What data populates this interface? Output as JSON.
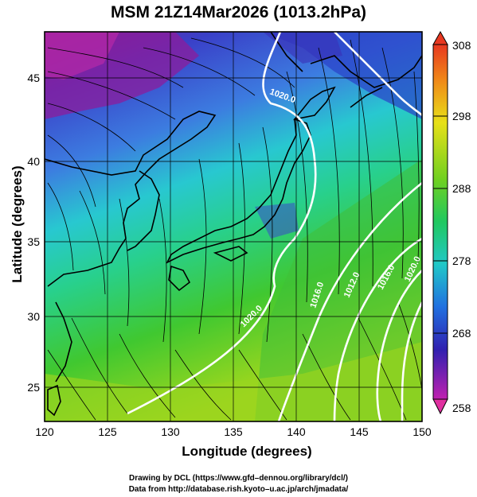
{
  "title": "MSM 21Z14Mar2026 (1013.2hPa)",
  "xaxis": {
    "label": "Longitude (degrees)",
    "ticks": [
      "120",
      "125",
      "130",
      "135",
      "140",
      "145",
      "150"
    ]
  },
  "yaxis": {
    "label": "Latitude  (degrees)",
    "ticks": [
      "25",
      "30",
      "35",
      "40",
      "45"
    ]
  },
  "colorbar": {
    "ticks": [
      "308",
      "298",
      "288",
      "278",
      "268",
      "258"
    ]
  },
  "contour_labels": [
    "1020.0",
    "1016.0",
    "1012.0",
    "1016.0",
    "1020.0",
    "1020.0"
  ],
  "credits": {
    "line1": "Drawing by DCL (https://www.gfd–dennou.org/library/dcl/)",
    "line2": "Data from http://database.rish.kyoto–u.ac.jp/arch/jmadata/"
  },
  "colors": {
    "cold": "#6010a0",
    "cool": "#3050d8",
    "mild": "#20c8c0",
    "warm": "#30c030",
    "hot": "#a8d818"
  }
}
